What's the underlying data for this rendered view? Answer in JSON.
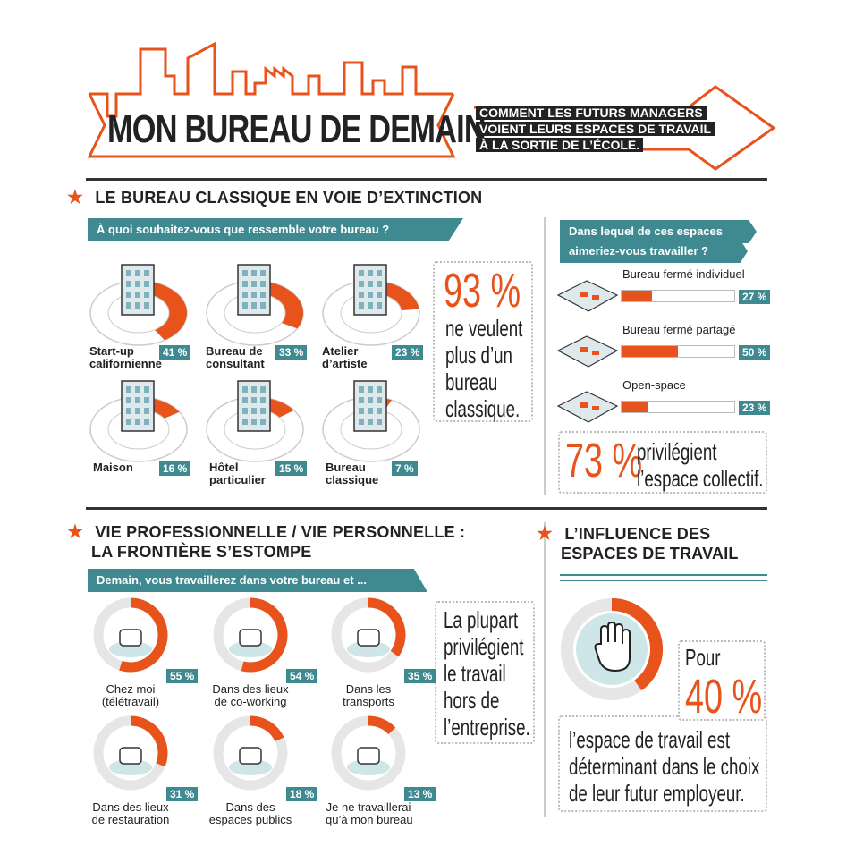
{
  "header": {
    "title": "MON BUREAU DE DEMAIN",
    "subtitle_lines": [
      "COMMENT LES FUTURS MANAGERS",
      "VOIENT LEURS ESPACES DE TRAVAIL",
      "À LA SORTIE DE L’ÉCOLE."
    ]
  },
  "section1": {
    "title": "LE BUREAU CLASSIQUE EN VOIE D’EXTINCTION",
    "question": "À quoi souhaitez-vous que ressemble votre bureau ?",
    "items": [
      {
        "label": "Start-up\ncalifornienne",
        "pct": "41 %",
        "value": 41
      },
      {
        "label": "Bureau de\nconsultant",
        "pct": "33 %",
        "value": 33
      },
      {
        "label": "Atelier\nd’artiste",
        "pct": "23 %",
        "value": 23
      },
      {
        "label": "Maison",
        "pct": "16 %",
        "value": 16
      },
      {
        "label": "Hôtel\nparticulier",
        "pct": "15 %",
        "value": 15
      },
      {
        "label": "Bureau\nclassique",
        "pct": "7 %",
        "value": 7
      }
    ],
    "highlight_pct": "93 %",
    "highlight_lines": [
      "ne veulent",
      "plus d’un",
      "bureau",
      "classique."
    ]
  },
  "spaces": {
    "question_lines": [
      "Dans lequel de ces espaces",
      "aimeriez-vous travailler ?"
    ],
    "items": [
      {
        "label": "Bureau fermé individuel",
        "pct": "27 %",
        "value": 27
      },
      {
        "label": "Bureau fermé partagé",
        "pct": "50 %",
        "value": 50
      },
      {
        "label": "Open-space",
        "pct": "23 %",
        "value": 23
      }
    ],
    "highlight_pct": "73 %",
    "highlight_lines": [
      "privilégient",
      "l’espace collectif."
    ]
  },
  "section2": {
    "title_lines": [
      "VIE PROFESSIONNELLE / VIE PERSONNELLE :",
      "LA FRONTIÈRE S’ESTOMPE"
    ],
    "question": "Demain, vous travaillerez dans votre bureau et ...",
    "items": [
      {
        "label": "Chez moi\n(télétravail)",
        "pct": "55 %",
        "value": 55
      },
      {
        "label": "Dans des lieux\nde co-working",
        "pct": "54 %",
        "value": 54
      },
      {
        "label": "Dans les\ntransports",
        "pct": "35 %",
        "value": 35
      },
      {
        "label": "Dans des lieux\nde restauration",
        "pct": "31 %",
        "value": 31
      },
      {
        "label": "Dans des\nespaces publics",
        "pct": "18 %",
        "value": 18
      },
      {
        "label": "Je ne travaillerai\nqu’à mon bureau",
        "pct": "13 %",
        "value": 13
      }
    ],
    "note_lines": [
      "La plupart",
      "privilégient",
      "le travail",
      "hors de",
      "l’entreprise."
    ]
  },
  "section3": {
    "title_lines": [
      "L’INFLUENCE DES",
      "ESPACES DE TRAVAIL"
    ],
    "value": 40,
    "pour": "Pour",
    "big_pct": "40 %",
    "text_lines": [
      "l’espace de travail est",
      "déterminant dans le choix",
      "de leur futur employeur."
    ]
  },
  "colors": {
    "accent": "#e8531c",
    "teal": "#3f8a91",
    "dark": "#222222"
  }
}
